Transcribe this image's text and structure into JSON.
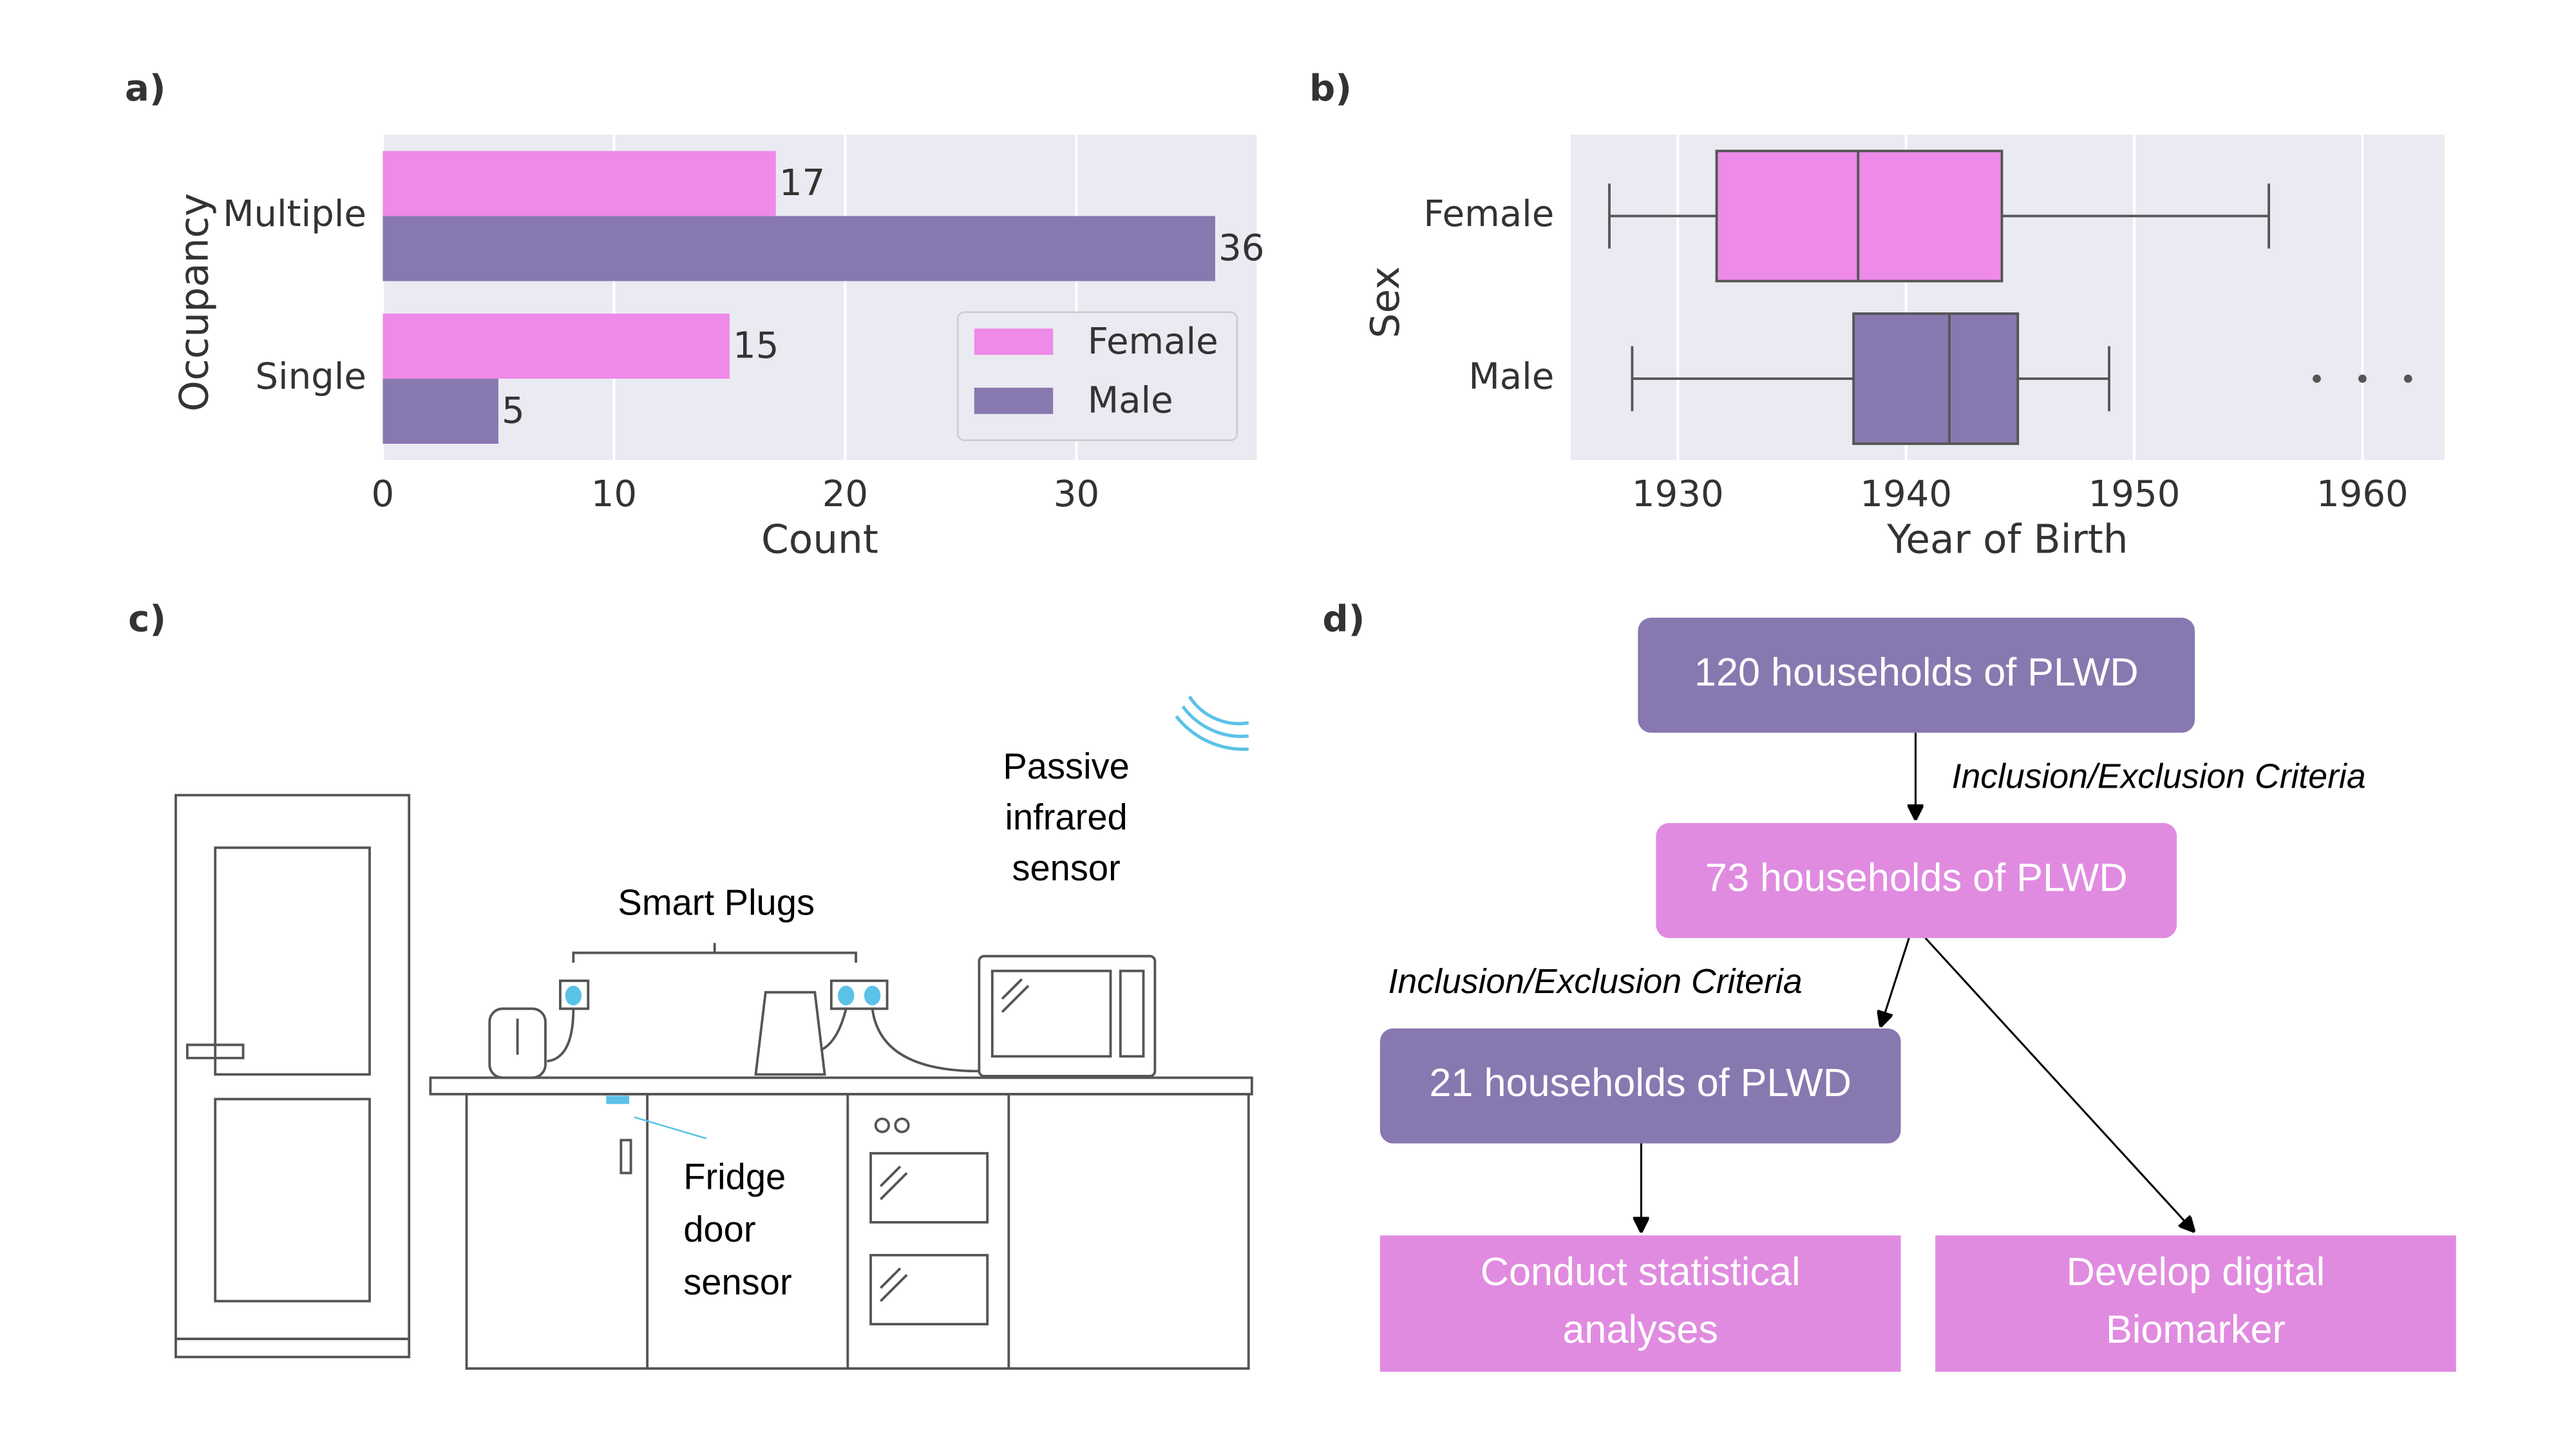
{
  "panel_labels": [
    "a)",
    "b)",
    "c)",
    "d)"
  ],
  "chart_data": [
    {
      "type": "hbar",
      "categories": [
        "Multiple",
        "Single"
      ],
      "series": [
        {
          "name": "Female",
          "color": "#ee8ae7",
          "values": [
            17,
            15
          ]
        },
        {
          "name": "Male",
          "color": "#8878b0",
          "values": [
            36,
            5
          ]
        }
      ],
      "xlabel": "Count",
      "ylabel": "Occupancy",
      "xlim": [
        0,
        37.8
      ],
      "xticks": [
        0,
        10,
        20,
        30
      ],
      "grid": true,
      "legend": "lower-right"
    },
    {
      "type": "boxplot",
      "categories": [
        "Female",
        "Male"
      ],
      "colors": [
        "#ee8ae7",
        "#8878b0"
      ],
      "boxes": [
        {
          "whislo": 1927.0,
          "q1": 1931.7,
          "med": 1937.9,
          "q3": 1944.2,
          "whishi": 1955.9,
          "fliers": []
        },
        {
          "whislo": 1928.0,
          "q1": 1937.7,
          "med": 1941.9,
          "q3": 1944.9,
          "whishi": 1948.9,
          "fliers": [
            1958,
            1960,
            1962
          ]
        }
      ],
      "xlabel": "Year of Birth",
      "ylabel": "Sex",
      "xlim": [
        1925.3,
        1963.6
      ],
      "xticks": [
        1930,
        1940,
        1950,
        1960
      ],
      "grid": true
    }
  ],
  "illustration": {
    "labels": [
      {
        "lines": [
          "Passive",
          "infrared",
          "sensor"
        ]
      },
      {
        "lines": [
          "Smart Plugs"
        ]
      },
      {
        "lines": [
          "Fridge",
          "door",
          "sensor"
        ]
      }
    ]
  },
  "flowchart": {
    "nodes": [
      {
        "lines": [
          "120 households of PLWD"
        ]
      },
      {
        "lines": [
          "73 households of PLWD"
        ]
      },
      {
        "lines": [
          "21 households of PLWD"
        ]
      },
      {
        "lines": [
          "Conduct statistical",
          "analyses"
        ]
      },
      {
        "lines": [
          "Develop digital",
          "Biomarker"
        ]
      }
    ],
    "edge_labels": [
      "Inclusion/Exclusion Criteria",
      "Inclusion/Exclusion Criteria"
    ]
  }
}
